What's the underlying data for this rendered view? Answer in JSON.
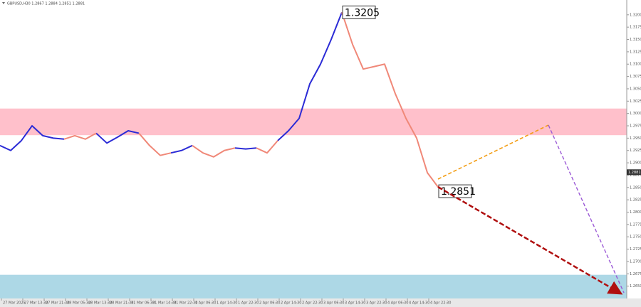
{
  "chart_data": {
    "type": "line",
    "header": "GBPUSD,H30 1.2867 1.2884 1.2851 1.2881",
    "categories": [
      "27 Mar 2025",
      null,
      "27 Mar 13:30",
      null,
      "27 Mar 21:30",
      null,
      "28 Mar 05:30",
      null,
      "28 Mar 13:30",
      null,
      "28 Mar 21:30",
      null,
      "31 Mar 06:30",
      null,
      "31 Mar 14:30",
      null,
      "31 Mar 22:30",
      null,
      "1 Apr 06:30",
      null,
      "1 Apr 14:30",
      null,
      "1 Apr 22:30",
      null,
      "2 Apr 06:30",
      null,
      "2 Apr 14:30",
      null,
      "2 Apr 22:30",
      null,
      "3 Apr 06:30",
      null,
      "3 Apr 14:30",
      null,
      "3 Apr 22:30",
      null,
      "4 Apr 06:30",
      null,
      "4 Apr 14:30",
      null,
      "4 Apr 22:30",
      null,
      null,
      null,
      null,
      null,
      null,
      null,
      null,
      null,
      null,
      null,
      null,
      null,
      null,
      null,
      null,
      null,
      null
    ],
    "series": [
      {
        "color": "#2b2bd6",
        "values": [
          1.2935,
          1.2925,
          1.2945,
          1.2975,
          1.2955,
          1.295,
          1.2948,
          null,
          null,
          1.296,
          1.294,
          1.2952,
          1.2965,
          1.296,
          null,
          null,
          1.292,
          1.2925,
          1.2935,
          null,
          null,
          null,
          1.293,
          1.2928,
          1.293,
          null,
          1.2945,
          1.2965,
          1.299,
          1.306,
          1.31,
          1.315,
          1.3205,
          null,
          null,
          null,
          null,
          null,
          null,
          null,
          null,
          null,
          null,
          null,
          null,
          null,
          null,
          null,
          null,
          null,
          null,
          null,
          null,
          null,
          null,
          null,
          null,
          null,
          null
        ]
      },
      {
        "color": "#f08878",
        "values": [
          null,
          null,
          null,
          null,
          null,
          null,
          1.2948,
          1.2955,
          1.2948,
          1.296,
          null,
          null,
          null,
          1.296,
          1.2935,
          1.2915,
          1.292,
          null,
          1.2935,
          1.292,
          1.2912,
          1.2925,
          1.293,
          null,
          1.293,
          1.292,
          1.2945,
          null,
          null,
          null,
          null,
          null,
          1.3205,
          1.314,
          1.309,
          1.3095,
          1.31,
          1.304,
          1.299,
          1.295,
          1.288,
          1.2851,
          null,
          null,
          null,
          null,
          null,
          null,
          null,
          null,
          null,
          null,
          null,
          null,
          null,
          null,
          null,
          null,
          null
        ]
      }
    ],
    "zones": [
      {
        "from": 1.2956,
        "to": 1.301,
        "color": "#ffc0cb"
      },
      {
        "from": 1.2625,
        "to": 1.2673,
        "color": "#add8e6"
      }
    ],
    "annotations": [
      {
        "text": "1.3205",
        "value": 1.3205
      },
      {
        "text": "1.2851",
        "value": 1.2851
      }
    ],
    "current_price": 1.2881,
    "ylim": [
      1.2625,
      1.323
    ],
    "yticks": [
      {
        "value": 1.265,
        "label": "1.2650"
      },
      1.2675,
      {
        "value": 1.27,
        "label": "1.2700"
      },
      1.2725,
      {
        "value": 1.275,
        "label": "1.2750"
      },
      1.2775,
      {
        "value": 1.28,
        "label": "1.2800"
      },
      1.2825,
      {
        "value": 1.285,
        "label": "1.2850"
      },
      1.2875,
      {
        "value": 1.29,
        "label": "1.2900"
      },
      1.2925,
      {
        "value": 1.295,
        "label": "1.2950"
      },
      1.2975,
      {
        "value": 1.3,
        "label": "1.3000"
      },
      1.3025,
      {
        "value": 1.305,
        "label": "1.3050"
      },
      1.3075,
      {
        "value": 1.31,
        "label": "1.3100"
      },
      1.3125,
      {
        "value": 1.315,
        "label": "1.3150"
      },
      1.3175,
      {
        "value": 1.32,
        "label": "1.3200"
      }
    ]
  }
}
